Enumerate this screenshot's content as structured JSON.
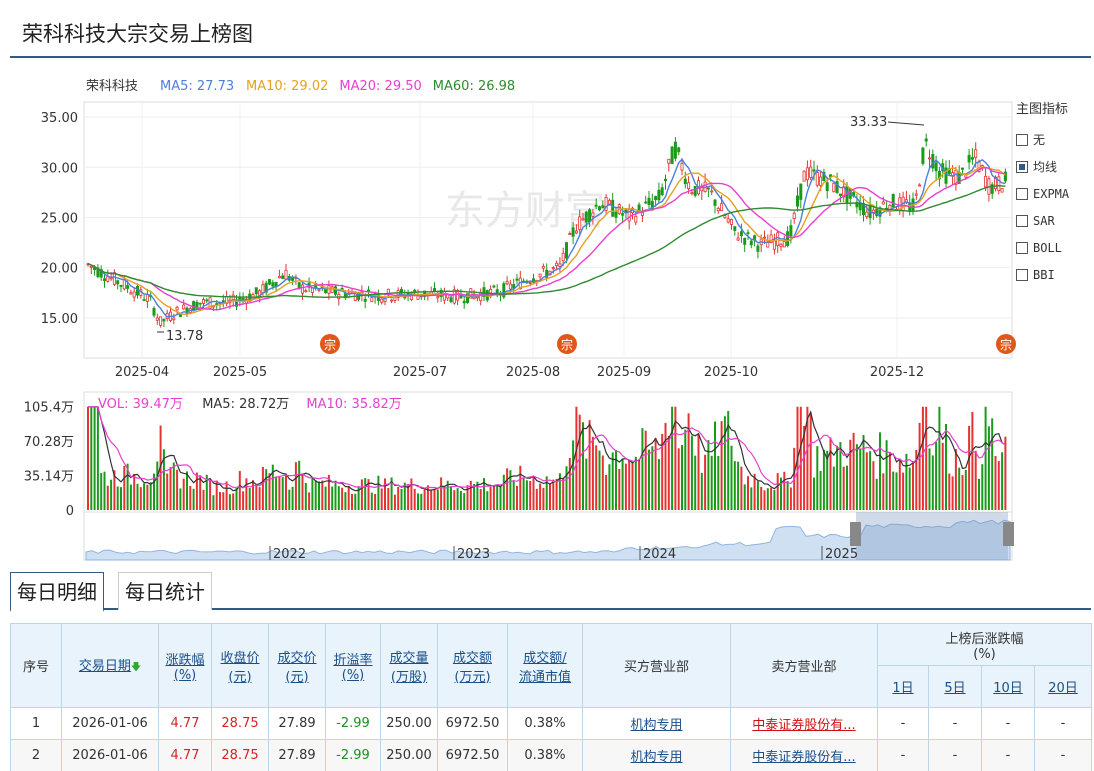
{
  "page": {
    "title": "荣科科技大宗交易上榜图"
  },
  "kline": {
    "stock_name": "荣科科技",
    "ma_legend": [
      {
        "label": "MA5: 27.73",
        "color": "#4a7fe0"
      },
      {
        "label": "MA10: 29.02",
        "color": "#e6a020"
      },
      {
        "label": "MA20: 29.50",
        "color": "#e83fd0"
      },
      {
        "label": "MA60: 26.98",
        "color": "#2e8b2e"
      }
    ],
    "y_ticks": [
      "35.00",
      "30.00",
      "25.00",
      "20.00",
      "15.00"
    ],
    "y_values": [
      35,
      30,
      25,
      20,
      15
    ],
    "x_ticks": [
      "2025-04",
      "2025-05",
      "2025-07",
      "2025-08",
      "2025-09",
      "2025-10",
      "2025-12"
    ],
    "annotation_high": "33.33",
    "annotation_low": "13.78",
    "marker_label": "宗",
    "watermark": "东方财富"
  },
  "volume": {
    "legend": [
      {
        "label": "VOL: 39.47万",
        "color": "#e83fd0"
      },
      {
        "label": "MA5: 28.72万",
        "color": "#333333"
      },
      {
        "label": "MA10: 35.82万",
        "color": "#e83fd0"
      }
    ],
    "y_ticks": [
      "105.4万",
      "70.28万",
      "35.14万",
      "0"
    ],
    "y_values": [
      105.4,
      70.28,
      35.14,
      0
    ]
  },
  "navigator": {
    "years": [
      "2022",
      "2023",
      "2024",
      "2025"
    ]
  },
  "indicators": {
    "title": "主图指标",
    "items": [
      {
        "label": "无",
        "checked": false
      },
      {
        "label": "均线",
        "checked": true
      },
      {
        "label": "EXPMA",
        "checked": false
      },
      {
        "label": "SAR",
        "checked": false
      },
      {
        "label": "BOLL",
        "checked": false
      },
      {
        "label": "BBI",
        "checked": false
      }
    ]
  },
  "tabs": [
    "每日明细",
    "每日统计"
  ],
  "table": {
    "headers": {
      "seq": "序号",
      "date": "交易日期",
      "change": "涨跌幅",
      "change_unit": "(%)",
      "close": "收盘价",
      "close_unit": "(元)",
      "price": "成交价",
      "price_unit": "(元)",
      "premium": "折溢率",
      "premium_unit": "(%)",
      "volume": "成交量",
      "volume_unit": "(万股)",
      "amount": "成交额",
      "amount_unit": "(万元)",
      "ratio": "成交额/",
      "ratio_unit": "流通市值",
      "buyer": "买方营业部",
      "seller": "卖方营业部",
      "after": "上榜后涨跌幅",
      "after_unit": "(%)",
      "d1": "1日",
      "d5": "5日",
      "d10": "10日",
      "d20": "20日"
    },
    "rows": [
      {
        "seq": "1",
        "date": "2026-01-06",
        "change": "4.77",
        "close": "28.75",
        "price": "27.89",
        "premium": "-2.99",
        "volume": "250.00",
        "amount": "6972.50",
        "ratio": "0.38%",
        "buyer": "机构专用",
        "seller": "中泰证券股份有...",
        "d1": "-",
        "d5": "-",
        "d10": "-",
        "d20": "-"
      },
      {
        "seq": "2",
        "date": "2026-01-06",
        "change": "4.77",
        "close": "28.75",
        "price": "27.89",
        "premium": "-2.99",
        "volume": "250.00",
        "amount": "6972.50",
        "ratio": "0.38%",
        "buyer": "机构专用",
        "seller": "中泰证券股份有...",
        "d1": "-",
        "d5": "-",
        "d10": "-",
        "d20": "-"
      }
    ]
  }
}
